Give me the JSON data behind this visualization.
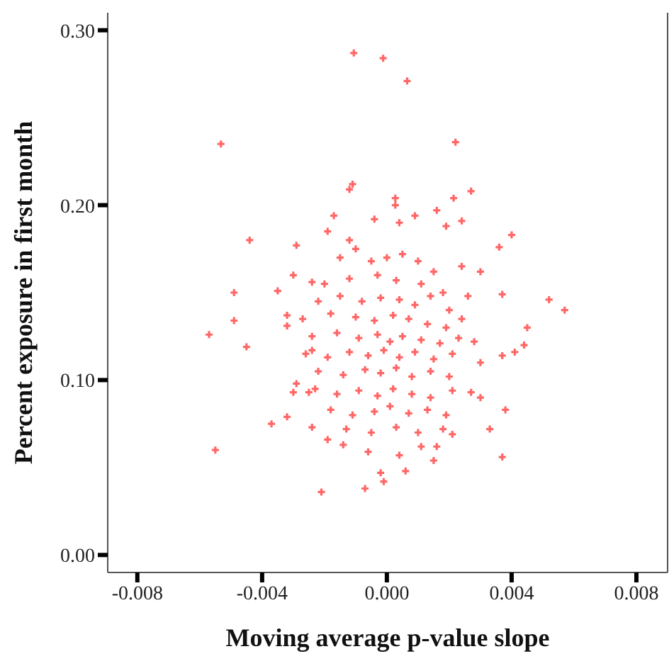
{
  "chart_data": {
    "type": "scatter",
    "xlabel": "Moving average p-value slope",
    "ylabel": "Percent exposure in first month",
    "xlim": [
      -0.00895,
      0.009
    ],
    "ylim": [
      -0.01,
      0.31
    ],
    "xticks": [
      {
        "value": -0.008,
        "label": "-0.008"
      },
      {
        "value": -0.004,
        "label": "-0.004"
      },
      {
        "value": 0,
        "label": "0.000"
      },
      {
        "value": 0.004,
        "label": "0.004"
      },
      {
        "value": 0.008,
        "label": "0.008"
      }
    ],
    "yticks": [
      {
        "value": 0,
        "label": "0.00"
      },
      {
        "value": 0.1,
        "label": "0.10"
      },
      {
        "value": 0.2,
        "label": "0.20"
      },
      {
        "value": 0.3,
        "label": "0.30"
      }
    ],
    "marker": "cross",
    "grid": false,
    "legend": false,
    "series": [
      {
        "color": "#ff3333",
        "x": [
          -0.00106,
          -0.00012,
          0.00065,
          -0.00532,
          0.0022,
          -0.0012,
          -0.0011,
          0.00027,
          0.00027,
          0.00214,
          0.0027,
          0.0016,
          0.004,
          0.0036,
          -0.0044,
          -0.0029,
          -0.0049,
          -0.0049,
          -0.0057,
          -0.0045,
          -0.0035,
          -0.003,
          0.0052,
          0.0057,
          0.0045,
          0.0037,
          0.0044,
          0.0041,
          0.0037,
          0.0038,
          0.0033,
          0.0037,
          -0.0055,
          -0.0037,
          -0.0032,
          -0.0021,
          -0.0007,
          -0.0001,
          -0.0002,
          0.0006,
          0.0015,
          0.0004,
          -0.0006,
          0.0016,
          0.0011,
          -0.0014,
          -0.0019,
          0.0021,
          0.0018,
          -0.0024,
          -0.003,
          -0.0029,
          -0.0025,
          0.0027,
          0.003,
          0.003,
          0.0028,
          0.003,
          0.0024,
          0.0024,
          0.0019,
          0.0009,
          0.0004,
          -0.0004,
          -0.0017,
          -0.0019,
          -0.0012,
          -0.0024,
          -0.0032,
          -0.0032,
          -0.0024,
          -0.0015,
          -0.001,
          -0.0005,
          0,
          0.0005,
          0.001,
          0.0015,
          -0.002,
          -0.0012,
          -0.0003,
          0.0003,
          0.0011,
          0.0018,
          -0.0022,
          -0.0015,
          -0.0008,
          -0.0002,
          0.0004,
          0.0009,
          0.0014,
          0.002,
          0.0026,
          -0.0027,
          -0.0018,
          -0.001,
          -0.0004,
          0.0002,
          0.0007,
          0.0013,
          0.0019,
          0.0024,
          -0.0024,
          -0.0016,
          -0.0009,
          -0.0003,
          0.0001,
          0.0005,
          0.0011,
          0.0017,
          0.0023,
          -0.0026,
          -0.0019,
          -0.0012,
          -0.0006,
          -0.0001,
          0.0004,
          0.0009,
          0.0015,
          0.0021,
          -0.0022,
          -0.0014,
          -0.0007,
          -0.0002,
          0.0003,
          0.0008,
          0.0014,
          0.002,
          -0.0023,
          -0.0016,
          -0.0009,
          -0.0003,
          0.0002,
          0.0008,
          0.0014,
          0.0021,
          -0.0018,
          -0.0011,
          -0.0004,
          0.0001,
          0.0007,
          0.0013,
          0.0019,
          -0.0013,
          -0.0005,
          0.0003,
          0.001
        ],
        "values": [
          0.287,
          0.284,
          0.271,
          0.235,
          0.236,
          0.209,
          0.212,
          0.204,
          0.2,
          0.204,
          0.208,
          0.197,
          0.183,
          0.176,
          0.18,
          0.177,
          0.15,
          0.134,
          0.126,
          0.119,
          0.151,
          0.16,
          0.146,
          0.14,
          0.13,
          0.149,
          0.12,
          0.116,
          0.114,
          0.083,
          0.072,
          0.056,
          0.06,
          0.075,
          0.079,
          0.036,
          0.038,
          0.042,
          0.047,
          0.048,
          0.054,
          0.057,
          0.059,
          0.062,
          0.062,
          0.063,
          0.066,
          0.069,
          0.072,
          0.073,
          0.093,
          0.098,
          0.093,
          0.093,
          0.09,
          0.11,
          0.122,
          0.162,
          0.165,
          0.191,
          0.188,
          0.194,
          0.19,
          0.192,
          0.194,
          0.185,
          0.18,
          0.156,
          0.137,
          0.131,
          0.117,
          0.17,
          0.175,
          0.168,
          0.17,
          0.172,
          0.168,
          0.162,
          0.155,
          0.158,
          0.16,
          0.157,
          0.155,
          0.15,
          0.145,
          0.148,
          0.145,
          0.147,
          0.146,
          0.143,
          0.148,
          0.14,
          0.148,
          0.135,
          0.138,
          0.136,
          0.134,
          0.137,
          0.135,
          0.132,
          0.13,
          0.135,
          0.125,
          0.127,
          0.124,
          0.126,
          0.122,
          0.125,
          0.123,
          0.121,
          0.124,
          0.115,
          0.113,
          0.116,
          0.114,
          0.117,
          0.113,
          0.116,
          0.112,
          0.115,
          0.105,
          0.103,
          0.106,
          0.104,
          0.107,
          0.102,
          0.105,
          0.102,
          0.095,
          0.092,
          0.094,
          0.091,
          0.095,
          0.092,
          0.09,
          0.094,
          0.083,
          0.08,
          0.082,
          0.085,
          0.081,
          0.083,
          0.08,
          0.072,
          0.07,
          0.073,
          0.07
        ]
      }
    ]
  }
}
